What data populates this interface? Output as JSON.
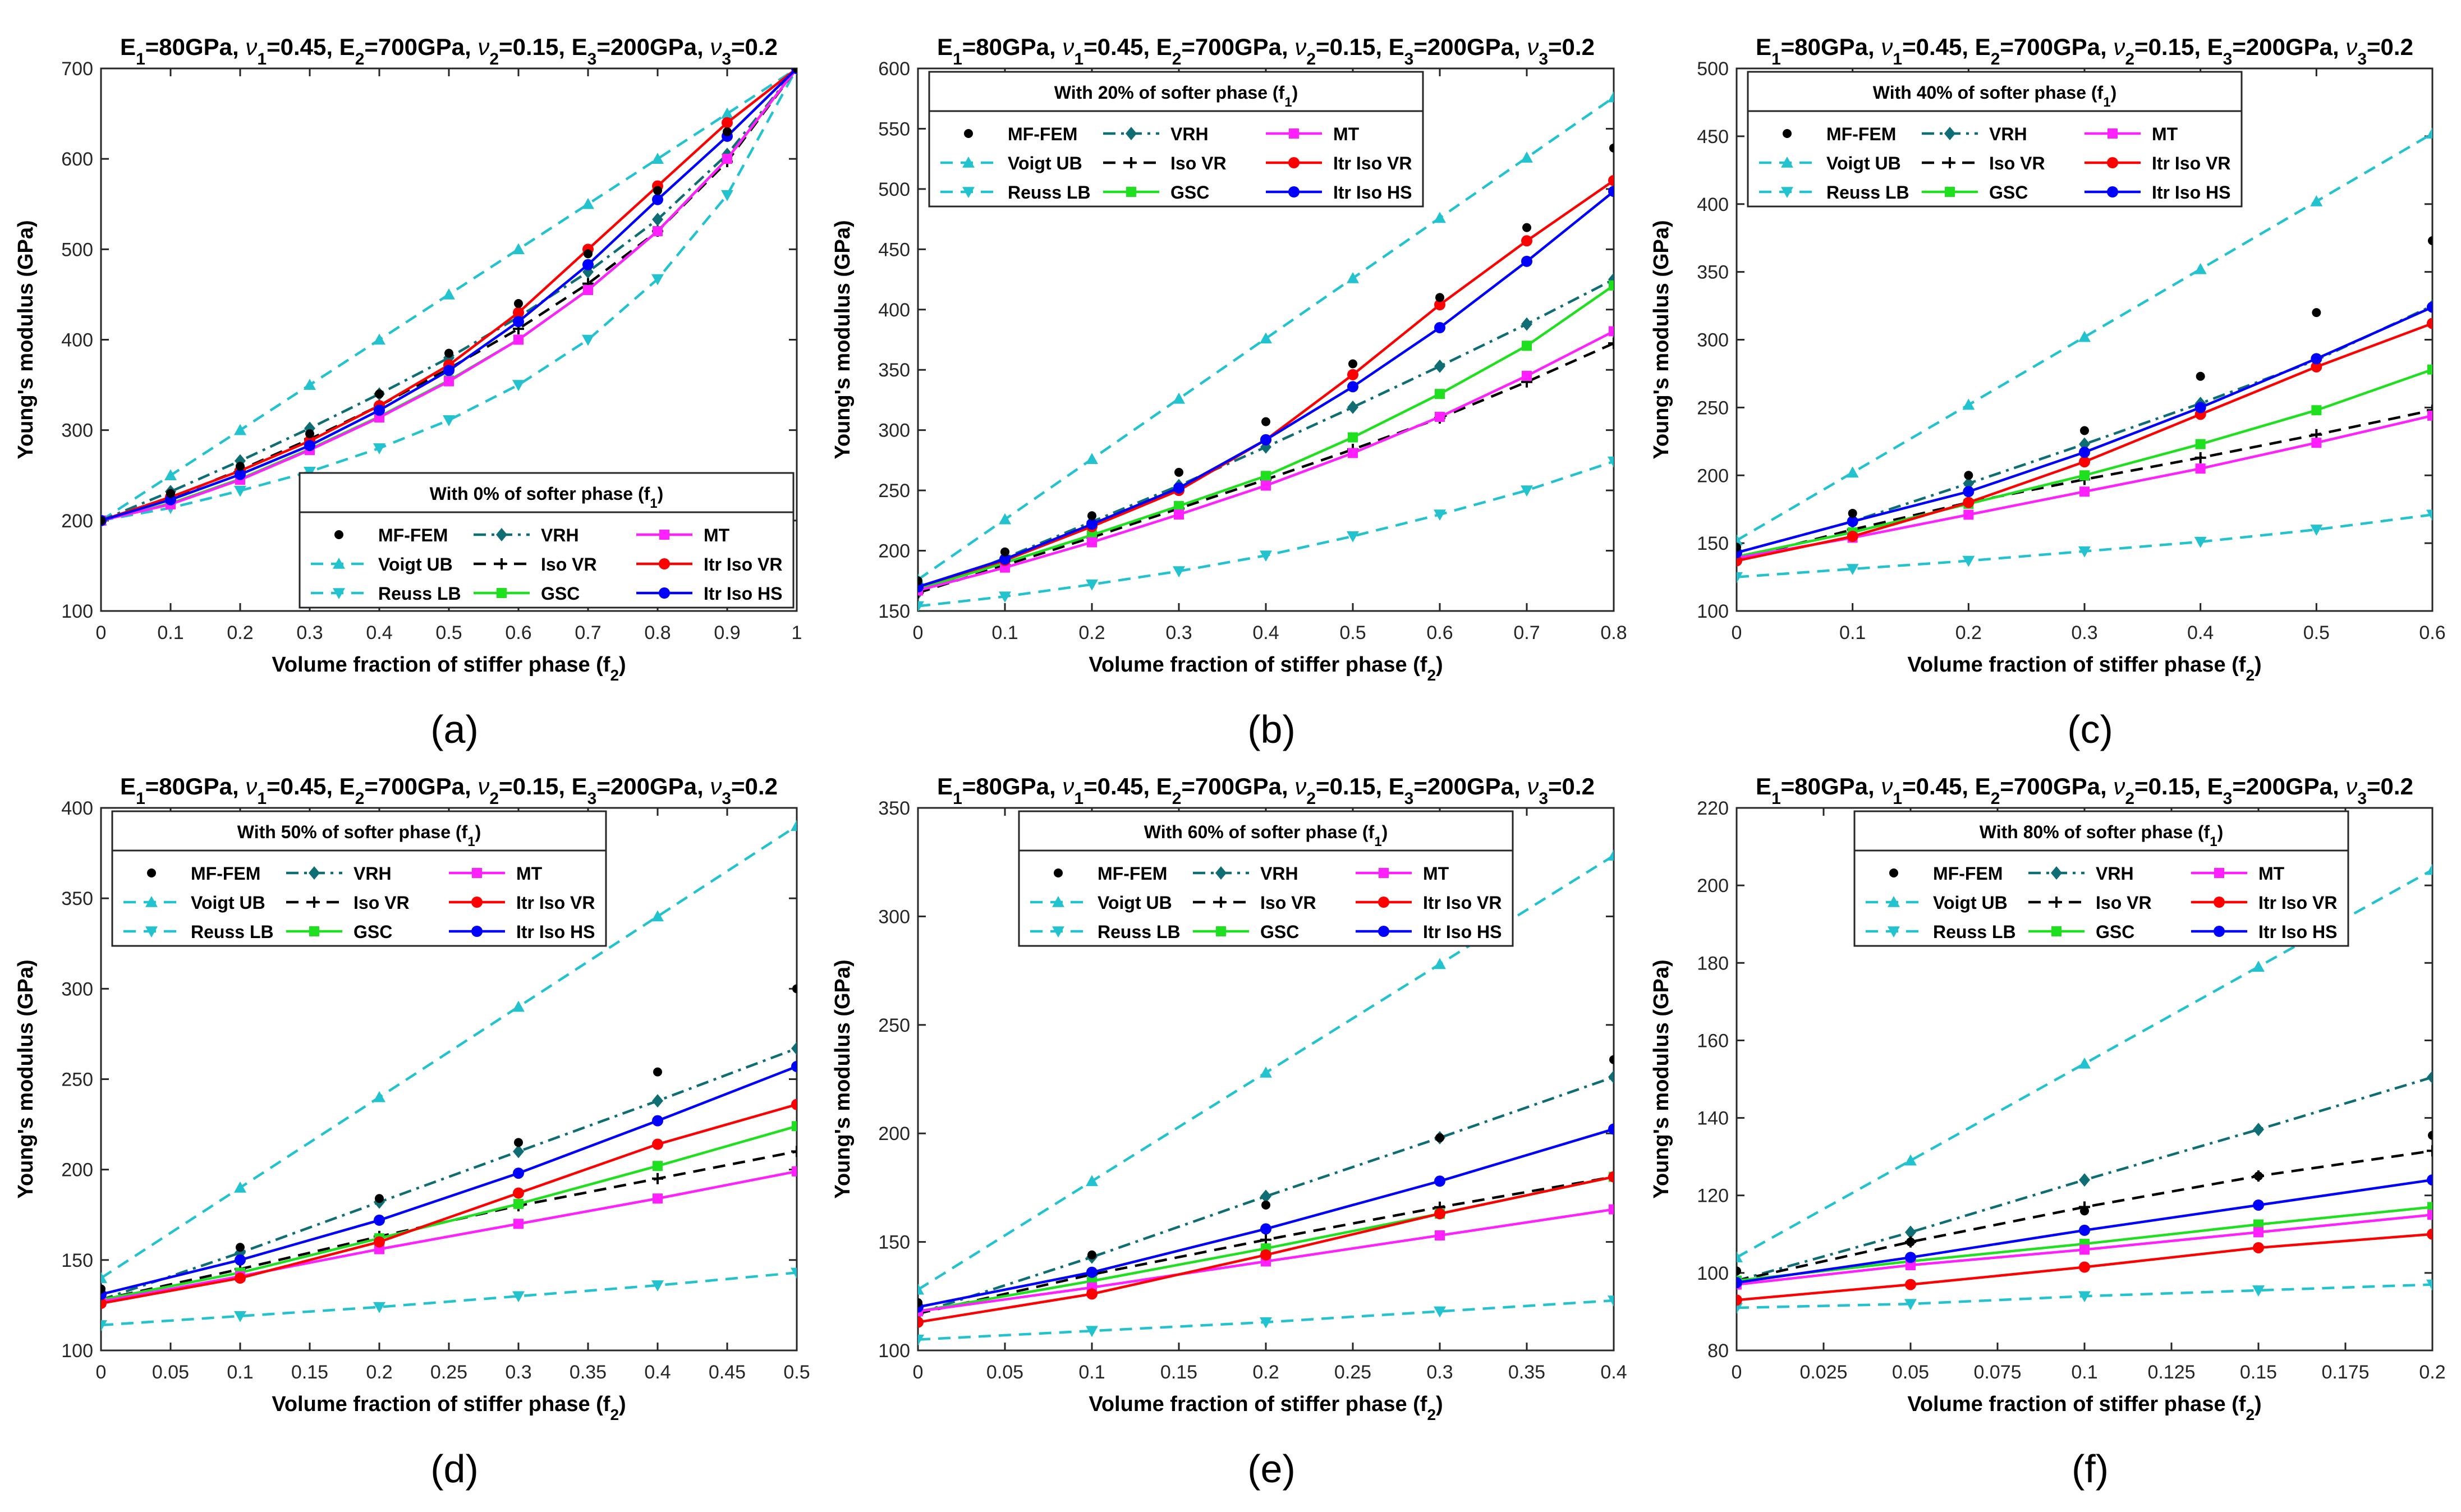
{
  "colors": {
    "mffem": "#000000",
    "voigt": "#22c3cf",
    "reuss": "#22c3cf",
    "vrh": "#0e6e73",
    "isovr": "#000000",
    "gsc": "#1fe01f",
    "mt": "#ff1fff",
    "itrvr": "#ff0000",
    "itrhs": "#0000ff"
  },
  "legend": {
    "mffem": "MF-FEM",
    "voigt": "Voigt UB",
    "reuss": "Reuss LB",
    "vrh": "VRH",
    "isovr": "Iso VR",
    "gsc": "GSC",
    "mt": "MT",
    "itrvr": "Itr Iso VR",
    "itrhs": "Itr Iso HS"
  },
  "chart_data": [
    {
      "type": "line",
      "panel_label": "(a)",
      "title_parts": {
        "E1": "=80GPa, ",
        "nu1": "=0.45,  ",
        "E2": "=700GPa, ",
        "nu2": "=0.15,  ",
        "E3": "=200GPa, ",
        "nu3": "=0.2"
      },
      "legend_title": "With 0% of softer phase (f",
      "legend_title_sub": "1",
      "legend_title_end": ")",
      "legend_position": "bottom-right",
      "xlabel": "Volume fraction of stiffer phase (f",
      "xlabel_sub": "2",
      "xlabel_end": ")",
      "ylabel": "Young's modulus (GPa)",
      "xlim": [
        0,
        1
      ],
      "ylim": [
        100,
        700
      ],
      "xticks": [
        0,
        0.1,
        0.2,
        0.3,
        0.4,
        0.5,
        0.6,
        0.7,
        0.8,
        0.9,
        1
      ],
      "xtick_labels": [
        "0",
        "0.1",
        "0.2",
        "0.3",
        "0.4",
        "0.5",
        "0.6",
        "0.7",
        "0.8",
        "0.9",
        "1"
      ],
      "yticks": [
        100,
        200,
        300,
        400,
        500,
        600,
        700
      ],
      "ytick_labels": [
        "100",
        "200",
        "300",
        "400",
        "500",
        "600",
        "700"
      ],
      "x": [
        0,
        0.1,
        0.2,
        0.3,
        0.4,
        0.5,
        0.6,
        0.7,
        0.8,
        0.9,
        1
      ],
      "series": [
        {
          "key": "voigt",
          "values": [
            200,
            250,
            300,
            350,
            400,
            450,
            500,
            550,
            600,
            650,
            700
          ]
        },
        {
          "key": "reuss",
          "values": [
            200,
            214,
            233,
            254,
            280,
            311,
            350,
            400,
            467,
            560,
            700
          ]
        },
        {
          "key": "vrh",
          "values": [
            200,
            232,
            266,
            302,
            340,
            380,
            425,
            475,
            533,
            605,
            700
          ]
        },
        {
          "key": "isovr",
          "values": [
            200,
            225,
            256,
            290,
            327,
            368,
            412,
            462,
            520,
            597,
            700
          ]
        },
        {
          "key": "gsc",
          "values": [
            200,
            219,
            246,
            279,
            315,
            355,
            400,
            455,
            520,
            600,
            700
          ]
        },
        {
          "key": "mt",
          "values": [
            200,
            218,
            245,
            278,
            314,
            354,
            400,
            455,
            520,
            600,
            700
          ]
        },
        {
          "key": "itrvr",
          "values": [
            200,
            226,
            255,
            288,
            327,
            372,
            430,
            500,
            570,
            640,
            700
          ]
        },
        {
          "key": "itrhs",
          "values": [
            200,
            223,
            251,
            283,
            322,
            366,
            420,
            483,
            555,
            625,
            700
          ]
        },
        {
          "key": "mffem",
          "values": [
            200,
            230,
            260,
            296,
            340,
            385,
            440,
            495,
            565,
            630,
            700
          ]
        }
      ]
    },
    {
      "type": "line",
      "panel_label": "(b)",
      "title_parts": {
        "E1": "=80GPa, ",
        "nu1": "=0.45,  ",
        "E2": "=700GPa, ",
        "nu2": "=0.15,  ",
        "E3": "=200GPa, ",
        "nu3": "=0.2"
      },
      "legend_title": "With 20% of softer phase (f",
      "legend_title_sub": "1",
      "legend_title_end": ")",
      "legend_position": "top-left",
      "xlabel": "Volume fraction of stiffer phase (f",
      "xlabel_sub": "2",
      "xlabel_end": ")",
      "ylabel": "Young's modulus (GPa)",
      "xlim": [
        0,
        0.8
      ],
      "ylim": [
        150,
        600
      ],
      "xticks": [
        0,
        0.1,
        0.2,
        0.3,
        0.4,
        0.5,
        0.6,
        0.7,
        0.8
      ],
      "xtick_labels": [
        "0",
        "0.1",
        "0.2",
        "0.3",
        "0.4",
        "0.5",
        "0.6",
        "0.7",
        "0.8"
      ],
      "yticks": [
        150,
        200,
        250,
        300,
        350,
        400,
        450,
        500,
        550,
        600
      ],
      "ytick_labels": [
        "150",
        "200",
        "250",
        "300",
        "350",
        "400",
        "450",
        "500",
        "550",
        "600"
      ],
      "x": [
        0,
        0.1,
        0.2,
        0.3,
        0.4,
        0.5,
        0.6,
        0.7,
        0.8
      ],
      "series": [
        {
          "key": "voigt",
          "values": [
            176,
            226,
            276,
            326,
            376,
            426,
            476,
            526,
            576
          ]
        },
        {
          "key": "reuss",
          "values": [
            154,
            162,
            172,
            183,
            196,
            212,
            230,
            250,
            274
          ]
        },
        {
          "key": "vrh",
          "values": [
            165,
            194,
            224,
            254,
            286,
            319,
            353,
            388,
            425
          ]
        },
        {
          "key": "isovr",
          "values": [
            165,
            188,
            211,
            235,
            259,
            284,
            310,
            340,
            372
          ]
        },
        {
          "key": "gsc",
          "values": [
            168,
            190,
            213,
            237,
            262,
            294,
            330,
            370,
            420
          ]
        },
        {
          "key": "mt",
          "values": [
            167,
            186,
            207,
            230,
            254,
            281,
            311,
            345,
            382
          ]
        },
        {
          "key": "itrvr",
          "values": [
            170,
            192,
            220,
            250,
            292,
            346,
            404,
            457,
            507
          ]
        },
        {
          "key": "itrhs",
          "values": [
            170,
            193,
            222,
            252,
            292,
            336,
            385,
            440,
            498
          ]
        },
        {
          "key": "mffem",
          "values": [
            175,
            199,
            229,
            265,
            307,
            355,
            410,
            468,
            534
          ]
        }
      ]
    },
    {
      "type": "line",
      "panel_label": "(c)",
      "title_parts": {
        "E1": "=80GPa, ",
        "nu1": "=0.45,  ",
        "E2": "=700GPa, ",
        "nu2": "=0.15,  ",
        "E3": "=200GPa, ",
        "nu3": "=0.2"
      },
      "legend_title": "With 40% of softer phase (f",
      "legend_title_sub": "1",
      "legend_title_end": ")",
      "legend_position": "top-left",
      "xlabel": "Volume fraction of stiffer phase (f",
      "xlabel_sub": "2",
      "xlabel_end": ")",
      "ylabel": "Young's modulus (GPa)",
      "xlim": [
        0,
        0.6
      ],
      "ylim": [
        100,
        500
      ],
      "xticks": [
        0,
        0.1,
        0.2,
        0.3,
        0.4,
        0.5,
        0.6
      ],
      "xtick_labels": [
        "0",
        "0.1",
        "0.2",
        "0.3",
        "0.4",
        "0.5",
        "0.6"
      ],
      "yticks": [
        100,
        150,
        200,
        250,
        300,
        350,
        400,
        450,
        500
      ],
      "ytick_labels": [
        "100",
        "150",
        "200",
        "250",
        "300",
        "350",
        "400",
        "450",
        "500"
      ],
      "x": [
        0,
        0.1,
        0.2,
        0.3,
        0.4,
        0.5,
        0.6
      ],
      "series": [
        {
          "key": "voigt",
          "values": [
            152,
            202,
            252,
            302,
            352,
            402,
            452
          ]
        },
        {
          "key": "reuss",
          "values": [
            125,
            131,
            137,
            144,
            151,
            160,
            171
          ]
        },
        {
          "key": "vrh",
          "values": [
            143,
            166,
            194,
            223,
            253,
            285,
            325
          ]
        },
        {
          "key": "isovr",
          "values": [
            138,
            160,
            180,
            197,
            213,
            230,
            248
          ]
        },
        {
          "key": "gsc",
          "values": [
            140,
            158,
            179,
            200,
            223,
            248,
            278
          ]
        },
        {
          "key": "mt",
          "values": [
            139,
            154,
            171,
            188,
            205,
            224,
            244
          ]
        },
        {
          "key": "itrvr",
          "values": [
            137,
            155,
            180,
            210,
            245,
            280,
            312
          ]
        },
        {
          "key": "itrhs",
          "values": [
            143,
            166,
            188,
            217,
            250,
            286,
            324
          ]
        },
        {
          "key": "mffem",
          "values": [
            147,
            172,
            200,
            233,
            273,
            320,
            373
          ]
        }
      ]
    },
    {
      "type": "line",
      "panel_label": "(d)",
      "title_parts": {
        "E1": "=80GPa, ",
        "nu1": "=0.45,  ",
        "E2": "=700GPa, ",
        "nu2": "=0.15,  ",
        "E3": "=200GPa, ",
        "nu3": "=0.2"
      },
      "legend_title": "With 50% of softer phase (f",
      "legend_title_sub": "1",
      "legend_title_end": ")",
      "legend_position": "top-left",
      "xlabel": "Volume fraction of stiffer phase (f",
      "xlabel_sub": "2",
      "xlabel_end": ")",
      "ylabel": "Young's modulus (GPa)",
      "xlim": [
        0,
        0.5
      ],
      "ylim": [
        100,
        400
      ],
      "xticks": [
        0,
        0.05,
        0.1,
        0.15,
        0.2,
        0.25,
        0.3,
        0.35,
        0.4,
        0.45,
        0.5
      ],
      "xtick_labels": [
        "0",
        "0.05",
        "0.1",
        "0.15",
        "0.2",
        "0.25",
        "0.3",
        "0.35",
        "0.4",
        "0.45",
        "0.5"
      ],
      "yticks": [
        100,
        150,
        200,
        250,
        300,
        350,
        400
      ],
      "ytick_labels": [
        "100",
        "150",
        "200",
        "250",
        "300",
        "350",
        "400"
      ],
      "x": [
        0,
        0.1,
        0.2,
        0.3,
        0.4,
        0.5
      ],
      "series": [
        {
          "key": "voigt",
          "values": [
            140,
            190,
            240,
            290,
            340,
            390
          ]
        },
        {
          "key": "reuss",
          "values": [
            114,
            119,
            124,
            130,
            136,
            143
          ]
        },
        {
          "key": "vrh",
          "values": [
            128,
            154,
            182,
            210,
            238,
            267
          ]
        },
        {
          "key": "isovr",
          "values": [
            128,
            145,
            163,
            180,
            195,
            210
          ]
        },
        {
          "key": "gsc",
          "values": [
            128,
            143,
            162,
            181,
            202,
            224
          ]
        },
        {
          "key": "mt",
          "values": [
            127,
            141,
            156,
            170,
            184,
            199
          ]
        },
        {
          "key": "itrvr",
          "values": [
            126,
            140,
            160,
            187,
            214,
            236
          ]
        },
        {
          "key": "itrhs",
          "values": [
            131,
            150,
            172,
            198,
            227,
            257
          ]
        },
        {
          "key": "mffem",
          "values": [
            134,
            157,
            184,
            215,
            254,
            300
          ]
        }
      ]
    },
    {
      "type": "line",
      "panel_label": "(e)",
      "title_parts": {
        "E1": "=80GPa, ",
        "nu1": "=0.45,  ",
        "E2": "=700GPa, ",
        "nu2": "=0.15,  ",
        "E3": "=200GPa, ",
        "nu3": "=0.2"
      },
      "legend_title": "With 60% of softer phase (f",
      "legend_title_sub": "1",
      "legend_title_end": ")",
      "legend_position": "top-right",
      "xlabel": "Volume fraction of stiffer phase (f",
      "xlabel_sub": "2",
      "xlabel_end": ")",
      "ylabel": "Young's modulus (GPa)",
      "xlim": [
        0,
        0.4
      ],
      "ylim": [
        100,
        350
      ],
      "xticks": [
        0,
        0.05,
        0.1,
        0.15,
        0.2,
        0.25,
        0.3,
        0.35,
        0.4
      ],
      "xtick_labels": [
        "0",
        "0.05",
        "0.1",
        "0.15",
        "0.2",
        "0.25",
        "0.3",
        "0.35",
        "0.4"
      ],
      "yticks": [
        100,
        150,
        200,
        250,
        300,
        350
      ],
      "ytick_labels": [
        "100",
        "150",
        "200",
        "250",
        "300",
        "350"
      ],
      "x": [
        0,
        0.1,
        0.2,
        0.3,
        0.4
      ],
      "series": [
        {
          "key": "voigt",
          "values": [
            128,
            178,
            228,
            278,
            328
          ]
        },
        {
          "key": "reuss",
          "values": [
            105,
            109,
            113,
            118,
            123
          ]
        },
        {
          "key": "vrh",
          "values": [
            117,
            143,
            171,
            198,
            226
          ]
        },
        {
          "key": "isovr",
          "values": [
            117,
            135,
            151,
            166,
            180
          ]
        },
        {
          "key": "gsc",
          "values": [
            118,
            132,
            147,
            163,
            180
          ]
        },
        {
          "key": "mt",
          "values": [
            118,
            129,
            141,
            153,
            165
          ]
        },
        {
          "key": "itrvr",
          "values": [
            113,
            126,
            144,
            163,
            180
          ]
        },
        {
          "key": "itrhs",
          "values": [
            120,
            136,
            156,
            178,
            202
          ]
        },
        {
          "key": "mffem",
          "values": [
            122,
            144,
            167,
            198,
            234
          ]
        }
      ]
    },
    {
      "type": "line",
      "panel_label": "(f)",
      "title_parts": {
        "E1": "=80GPa, ",
        "nu1": "=0.45,  ",
        "E2": "=700GPa, ",
        "nu2": "=0.15,  ",
        "E3": "=200GPa, ",
        "nu3": "=0.2"
      },
      "legend_title": "With 80% of softer phase (f",
      "legend_title_sub": "1",
      "legend_title_end": ")",
      "legend_position": "top-center",
      "xlabel": "Volume fraction of stiffer phase (f",
      "xlabel_sub": "2",
      "xlabel_end": ")",
      "ylabel": "Young's modulus (GPa)",
      "xlim": [
        0,
        0.2
      ],
      "ylim": [
        80,
        220
      ],
      "xticks": [
        0,
        0.025,
        0.05,
        0.075,
        0.1,
        0.125,
        0.15,
        0.175,
        0.2
      ],
      "xtick_labels": [
        "0",
        "0.025",
        "0.05",
        "0.075",
        "0.1",
        "0.125",
        "0.15",
        "0.175",
        "0.2"
      ],
      "yticks": [
        80,
        100,
        120,
        140,
        160,
        180,
        200,
        220
      ],
      "ytick_labels": [
        "80",
        "100",
        "120",
        "140",
        "160",
        "180",
        "200",
        "220"
      ],
      "x": [
        0,
        0.05,
        0.1,
        0.15,
        0.2
      ],
      "series": [
        {
          "key": "voigt",
          "values": [
            104,
            129,
            154,
            179,
            204
          ]
        },
        {
          "key": "reuss",
          "values": [
            91,
            92,
            94,
            95.5,
            97
          ]
        },
        {
          "key": "vrh",
          "values": [
            98,
            110.5,
            124,
            137,
            150.5
          ]
        },
        {
          "key": "isovr",
          "values": [
            98,
            108,
            117,
            125,
            131.5
          ]
        },
        {
          "key": "gsc",
          "values": [
            98,
            103,
            107.5,
            112.5,
            117
          ]
        },
        {
          "key": "mt",
          "values": [
            97,
            102,
            106,
            110.5,
            115
          ]
        },
        {
          "key": "itrvr",
          "values": [
            93,
            97,
            101.5,
            106.5,
            110
          ]
        },
        {
          "key": "itrhs",
          "values": [
            97.5,
            104,
            111,
            117.5,
            124
          ]
        },
        {
          "key": "mffem",
          "values": [
            100.5,
            108,
            116,
            125,
            135.5
          ]
        }
      ]
    }
  ]
}
